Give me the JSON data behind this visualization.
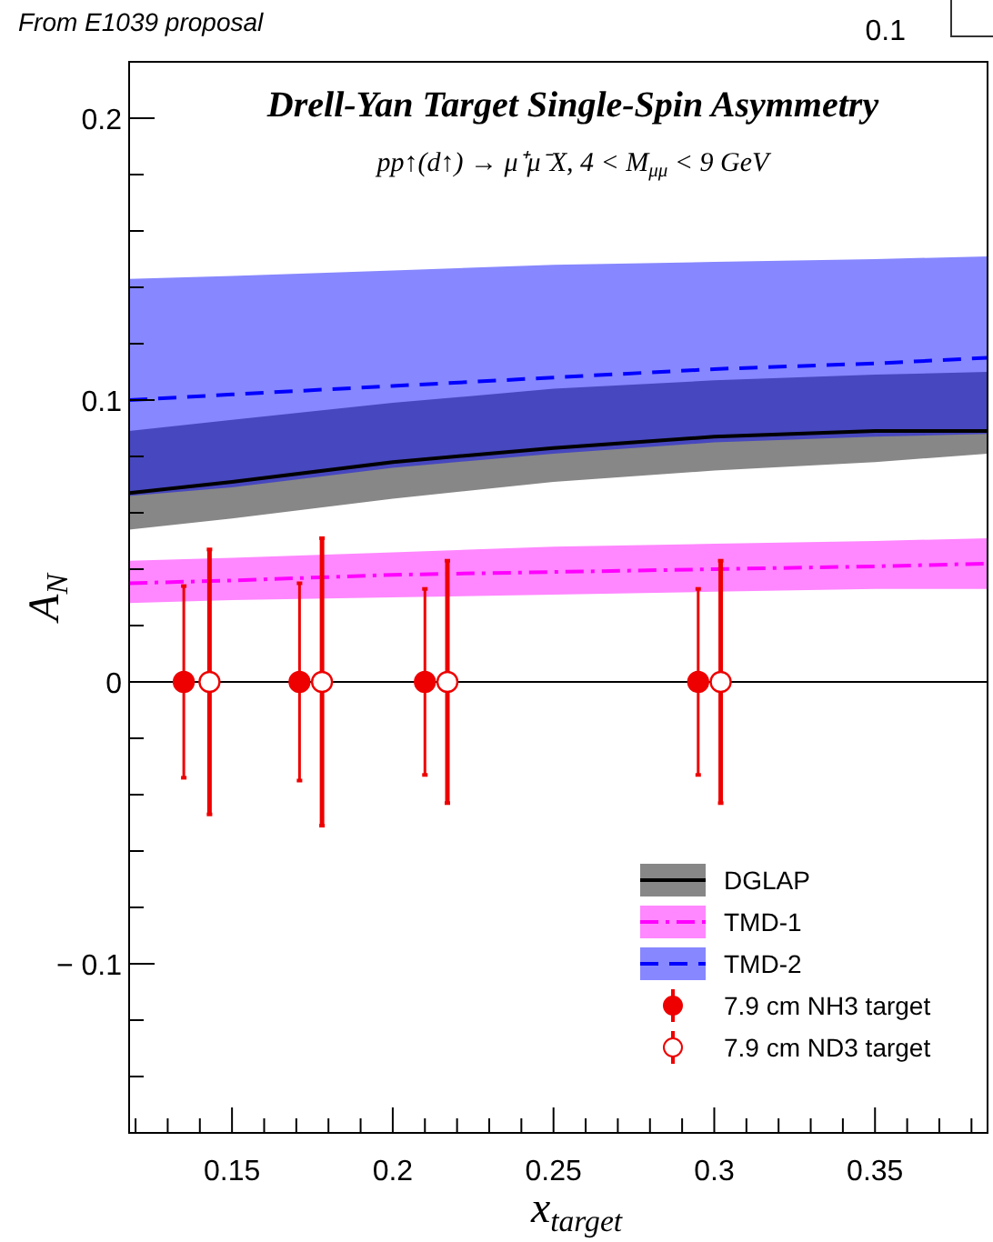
{
  "chart_data": {
    "type": "line",
    "title": "Drell-Yan Target Single-Spin Asymmetry",
    "subtitle": "pp↑(d↑) → μ⁺μ⁻X, 4 < M$_{μμ}$ < 9 GeV",
    "xlabel": "x$_{target}$",
    "ylabel": "A$_{N}$",
    "annotations": [
      "From E1039 proposal",
      "0.1"
    ],
    "xlim": [
      0.118,
      0.385
    ],
    "ylim": [
      -0.16,
      0.22
    ],
    "xticks": [
      {
        "value": 0.12,
        "label": null
      },
      {
        "value": 0.13,
        "label": null
      },
      {
        "value": 0.14,
        "label": null
      },
      0.15,
      {
        "value": 0.16,
        "label": null
      },
      {
        "value": 0.17,
        "label": null
      },
      {
        "value": 0.18,
        "label": null
      },
      {
        "value": 0.19,
        "label": null
      },
      0.2,
      {
        "value": 0.21,
        "label": null
      },
      {
        "value": 0.22,
        "label": null
      },
      {
        "value": 0.23,
        "label": null
      },
      {
        "value": 0.24,
        "label": null
      },
      0.25,
      {
        "value": 0.26,
        "label": null
      },
      {
        "value": 0.27,
        "label": null
      },
      {
        "value": 0.28,
        "label": null
      },
      {
        "value": 0.29,
        "label": null
      },
      0.3,
      {
        "value": 0.31,
        "label": null
      },
      {
        "value": 0.32,
        "label": null
      },
      {
        "value": 0.33,
        "label": null
      },
      {
        "value": 0.34,
        "label": null
      },
      0.35,
      {
        "value": 0.36,
        "label": null
      },
      {
        "value": 0.37,
        "label": null
      },
      {
        "value": 0.38,
        "label": null
      }
    ],
    "yticks": [
      {
        "value": -0.14,
        "label": null
      },
      {
        "value": -0.12,
        "label": null
      },
      {
        "value": -0.1,
        "label": "− 0.1"
      },
      {
        "value": -0.08,
        "label": null
      },
      {
        "value": -0.06,
        "label": null
      },
      {
        "value": -0.04,
        "label": null
      },
      {
        "value": -0.02,
        "label": null
      },
      0,
      {
        "value": 0.02,
        "label": null
      },
      {
        "value": 0.04,
        "label": null
      },
      {
        "value": 0.06,
        "label": null
      },
      {
        "value": 0.08,
        "label": null
      },
      0.1,
      {
        "value": 0.12,
        "label": null
      },
      {
        "value": 0.14,
        "label": null
      },
      {
        "value": 0.16,
        "label": null
      },
      {
        "value": 0.18,
        "label": null
      },
      0.2
    ],
    "ref_lines": [
      {
        "axis": "y",
        "value": 0,
        "color": "#000000"
      }
    ],
    "legend": "bottom right",
    "series": [
      {
        "name": "DGLAP",
        "color": "#000000",
        "line_style": "solid",
        "x": [
          0.118,
          0.15,
          0.2,
          0.25,
          0.3,
          0.35,
          0.385
        ],
        "values": [
          0.067,
          0.071,
          0.078,
          0.083,
          0.087,
          0.089,
          0.089
        ],
        "lower": [
          0.054,
          0.058,
          0.065,
          0.071,
          0.075,
          0.078,
          0.081
        ],
        "upper": [
          0.089,
          0.093,
          0.099,
          0.104,
          0.107,
          0.109,
          0.11
        ]
      },
      {
        "name": "TMD-1",
        "color": "#ff00ff",
        "line_style": "dashdot",
        "x": [
          0.118,
          0.15,
          0.2,
          0.25,
          0.3,
          0.35,
          0.385
        ],
        "values": [
          0.035,
          0.036,
          0.038,
          0.039,
          0.04,
          0.041,
          0.042
        ],
        "lower": [
          0.028,
          0.029,
          0.03,
          0.031,
          0.032,
          0.033,
          0.033
        ],
        "upper": [
          0.043,
          0.044,
          0.046,
          0.048,
          0.049,
          0.05,
          0.051
        ]
      },
      {
        "name": "TMD-2",
        "color": "#0000ff",
        "line_style": "dashed",
        "x": [
          0.118,
          0.15,
          0.2,
          0.25,
          0.3,
          0.35,
          0.385
        ],
        "values": [
          0.1,
          0.102,
          0.105,
          0.108,
          0.111,
          0.113,
          0.115
        ],
        "lower": [
          0.066,
          0.069,
          0.076,
          0.081,
          0.085,
          0.087,
          0.088
        ],
        "upper": [
          0.143,
          0.144,
          0.146,
          0.148,
          0.149,
          0.15,
          0.151
        ]
      },
      {
        "name": "7.9 cm NH3 target",
        "type": "scatter",
        "marker": "circle",
        "color": "#ee0000",
        "x": [
          0.135,
          0.171,
          0.21,
          0.295
        ],
        "values": [
          0,
          0,
          0,
          0
        ],
        "errors": [
          0.034,
          0.035,
          0.033,
          0.033
        ]
      },
      {
        "name": "7.9 cm ND3 target",
        "type": "scatter",
        "marker": "circle",
        "color": "#ee0000",
        "x": [
          0.143,
          0.178,
          0.217,
          0.302
        ],
        "values": [
          0,
          0,
          0,
          0
        ],
        "errors": [
          0.047,
          0.051,
          0.043,
          0.043
        ]
      }
    ]
  }
}
